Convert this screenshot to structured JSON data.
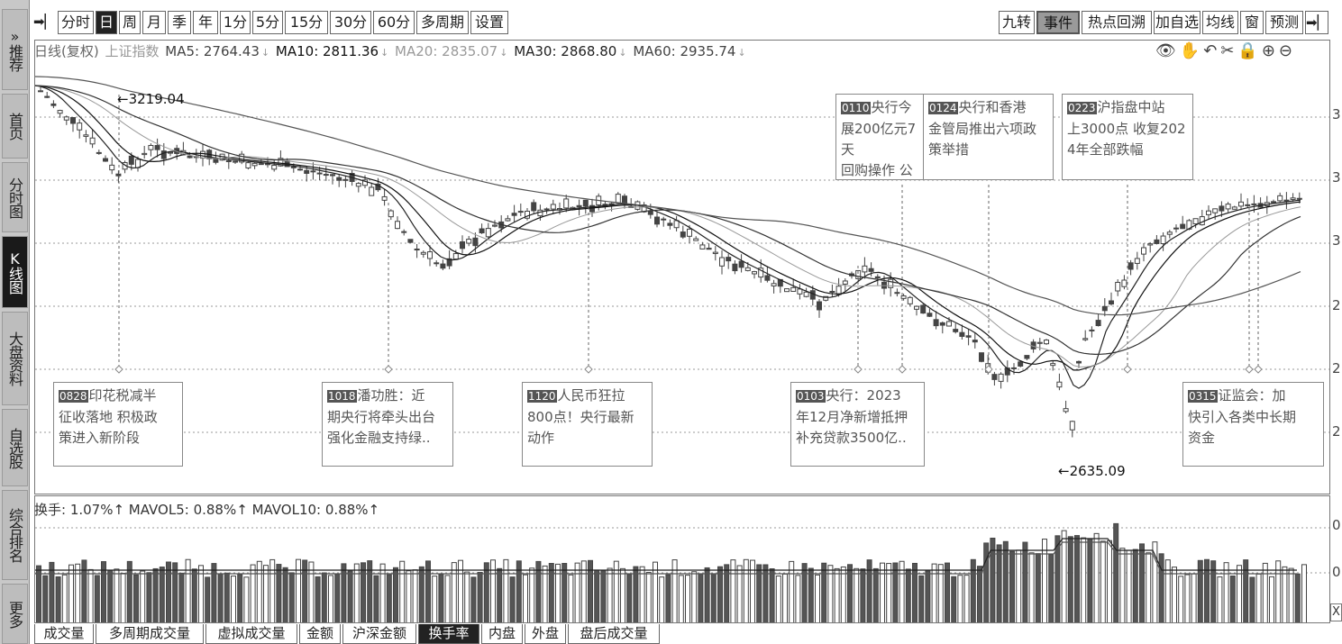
{
  "sidebar": {
    "items": [
      {
        "label": "»推荐"
      },
      {
        "label": "首页"
      },
      {
        "label": "分时图"
      },
      {
        "label": "K线图"
      },
      {
        "label": "大盘资料"
      },
      {
        "label": "自选股"
      },
      {
        "label": "综合排名"
      },
      {
        "label": "更多"
      }
    ]
  },
  "toolbar": {
    "periods": [
      "分时",
      "日",
      "周",
      "月",
      "季",
      "年",
      "1分",
      "5分",
      "15分",
      "30分",
      "60分",
      "多周期",
      "设置"
    ],
    "right": [
      "九转",
      "事件",
      "热点回溯",
      "加自选",
      "均线",
      "窗",
      "预测"
    ]
  },
  "header": {
    "title": "日线(复权)",
    "index_name": "上证指数",
    "ma": [
      {
        "label": "MA5: 2764.43"
      },
      {
        "label": "MA10: 2811.36"
      },
      {
        "label": "MA20: 2835.07"
      },
      {
        "label": "MA30: 2868.80"
      },
      {
        "label": "MA60: 2935.74"
      }
    ],
    "tools": "👁✋↶✂🔒⊕⊖"
  },
  "annotations": {
    "high": "3219.04",
    "low": "2635.09"
  },
  "events": [
    {
      "code": "0828",
      "text": "印花税减半\n征收落地 积极政\n策进入新阶段"
    },
    {
      "code": "1018",
      "text": "潘功胜：近\n期央行将牵头出台\n强化金融支持绿.."
    },
    {
      "code": "1120",
      "text": "人民币狂拉\n800点！央行最新\n动作"
    },
    {
      "code": "0103",
      "text": "央行：2023\n年12月净新增抵押\n补充贷款3500亿.."
    },
    {
      "code": "0110",
      "text": "央行今\n展200亿元7天\n回购操作 公"
    },
    {
      "code": "0124",
      "text": "央行和香港\n金管局推出六项政\n策举措"
    },
    {
      "code": "0223",
      "text": "沪指盘中站\n上3000点 收复202\n4年全部跌幅"
    },
    {
      "code": "0315",
      "text": "证监会：加\n快引入各类中长期\n资金"
    }
  ],
  "axis_right": [
    "3",
    "3",
    "3",
    "2",
    "2",
    "2"
  ],
  "volume": {
    "header": "换手: 1.07%↑ MAVOL5: 0.88%↑ MAVOL10: 0.88%↑",
    "axis": [
      "0",
      "0"
    ],
    "x_button": "X"
  },
  "bottom_tabs": [
    "成交量",
    "多周期成交量",
    "虚拟成交量",
    "金额",
    "沪深金额",
    "换手率",
    "内盘",
    "外盘",
    "盘后成交量"
  ],
  "chart_data": {
    "type": "candlestick",
    "title": "上证指数 日线(复权)",
    "high": 3219.04,
    "low": 2635.09,
    "ma_latest": {
      "MA5": 2764.43,
      "MA10": 2811.36,
      "MA20": 2835.07,
      "MA30": 2868.8,
      "MA60": 2935.74
    },
    "volume_latest": {
      "换手": "1.07%",
      "MAVOL5": "0.88%",
      "MAVOL10": "0.88%"
    }
  }
}
